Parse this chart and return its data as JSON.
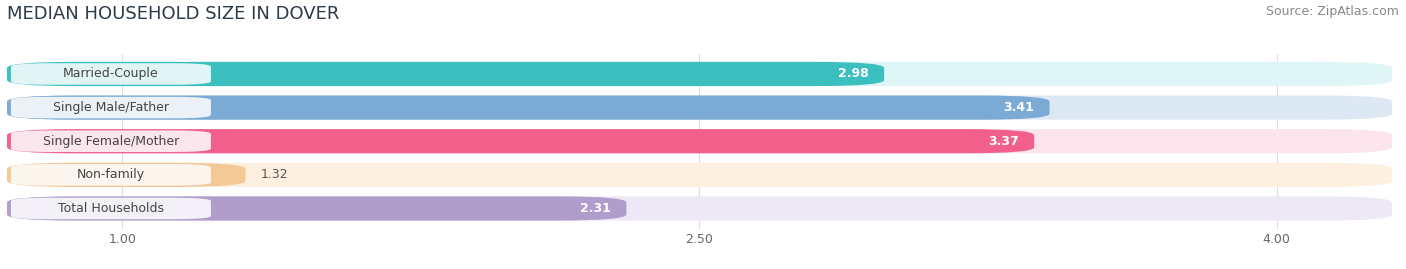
{
  "title": "MEDIAN HOUSEHOLD SIZE IN DOVER",
  "source": "Source: ZipAtlas.com",
  "categories": [
    "Married-Couple",
    "Single Male/Father",
    "Single Female/Mother",
    "Non-family",
    "Total Households"
  ],
  "values": [
    2.98,
    3.41,
    3.37,
    1.32,
    2.31
  ],
  "bar_colors": [
    "#3bbfbf",
    "#7baad4",
    "#f0608a",
    "#f5c898",
    "#b09dcc"
  ],
  "bar_bg_colors": [
    "#e0f5f5",
    "#dde8f5",
    "#fce4ec",
    "#fdf0e0",
    "#ede7f6"
  ],
  "xlim_data": [
    0.7,
    4.3
  ],
  "xstart": 0.7,
  "xend": 4.3,
  "xticks": [
    1.0,
    2.5,
    4.0
  ],
  "xtick_labels": [
    "1.00",
    "2.50",
    "4.00"
  ],
  "title_fontsize": 13,
  "source_fontsize": 9,
  "label_fontsize": 9,
  "value_fontsize": 9,
  "background_color": "#ffffff",
  "grid_color": "#dddddd"
}
